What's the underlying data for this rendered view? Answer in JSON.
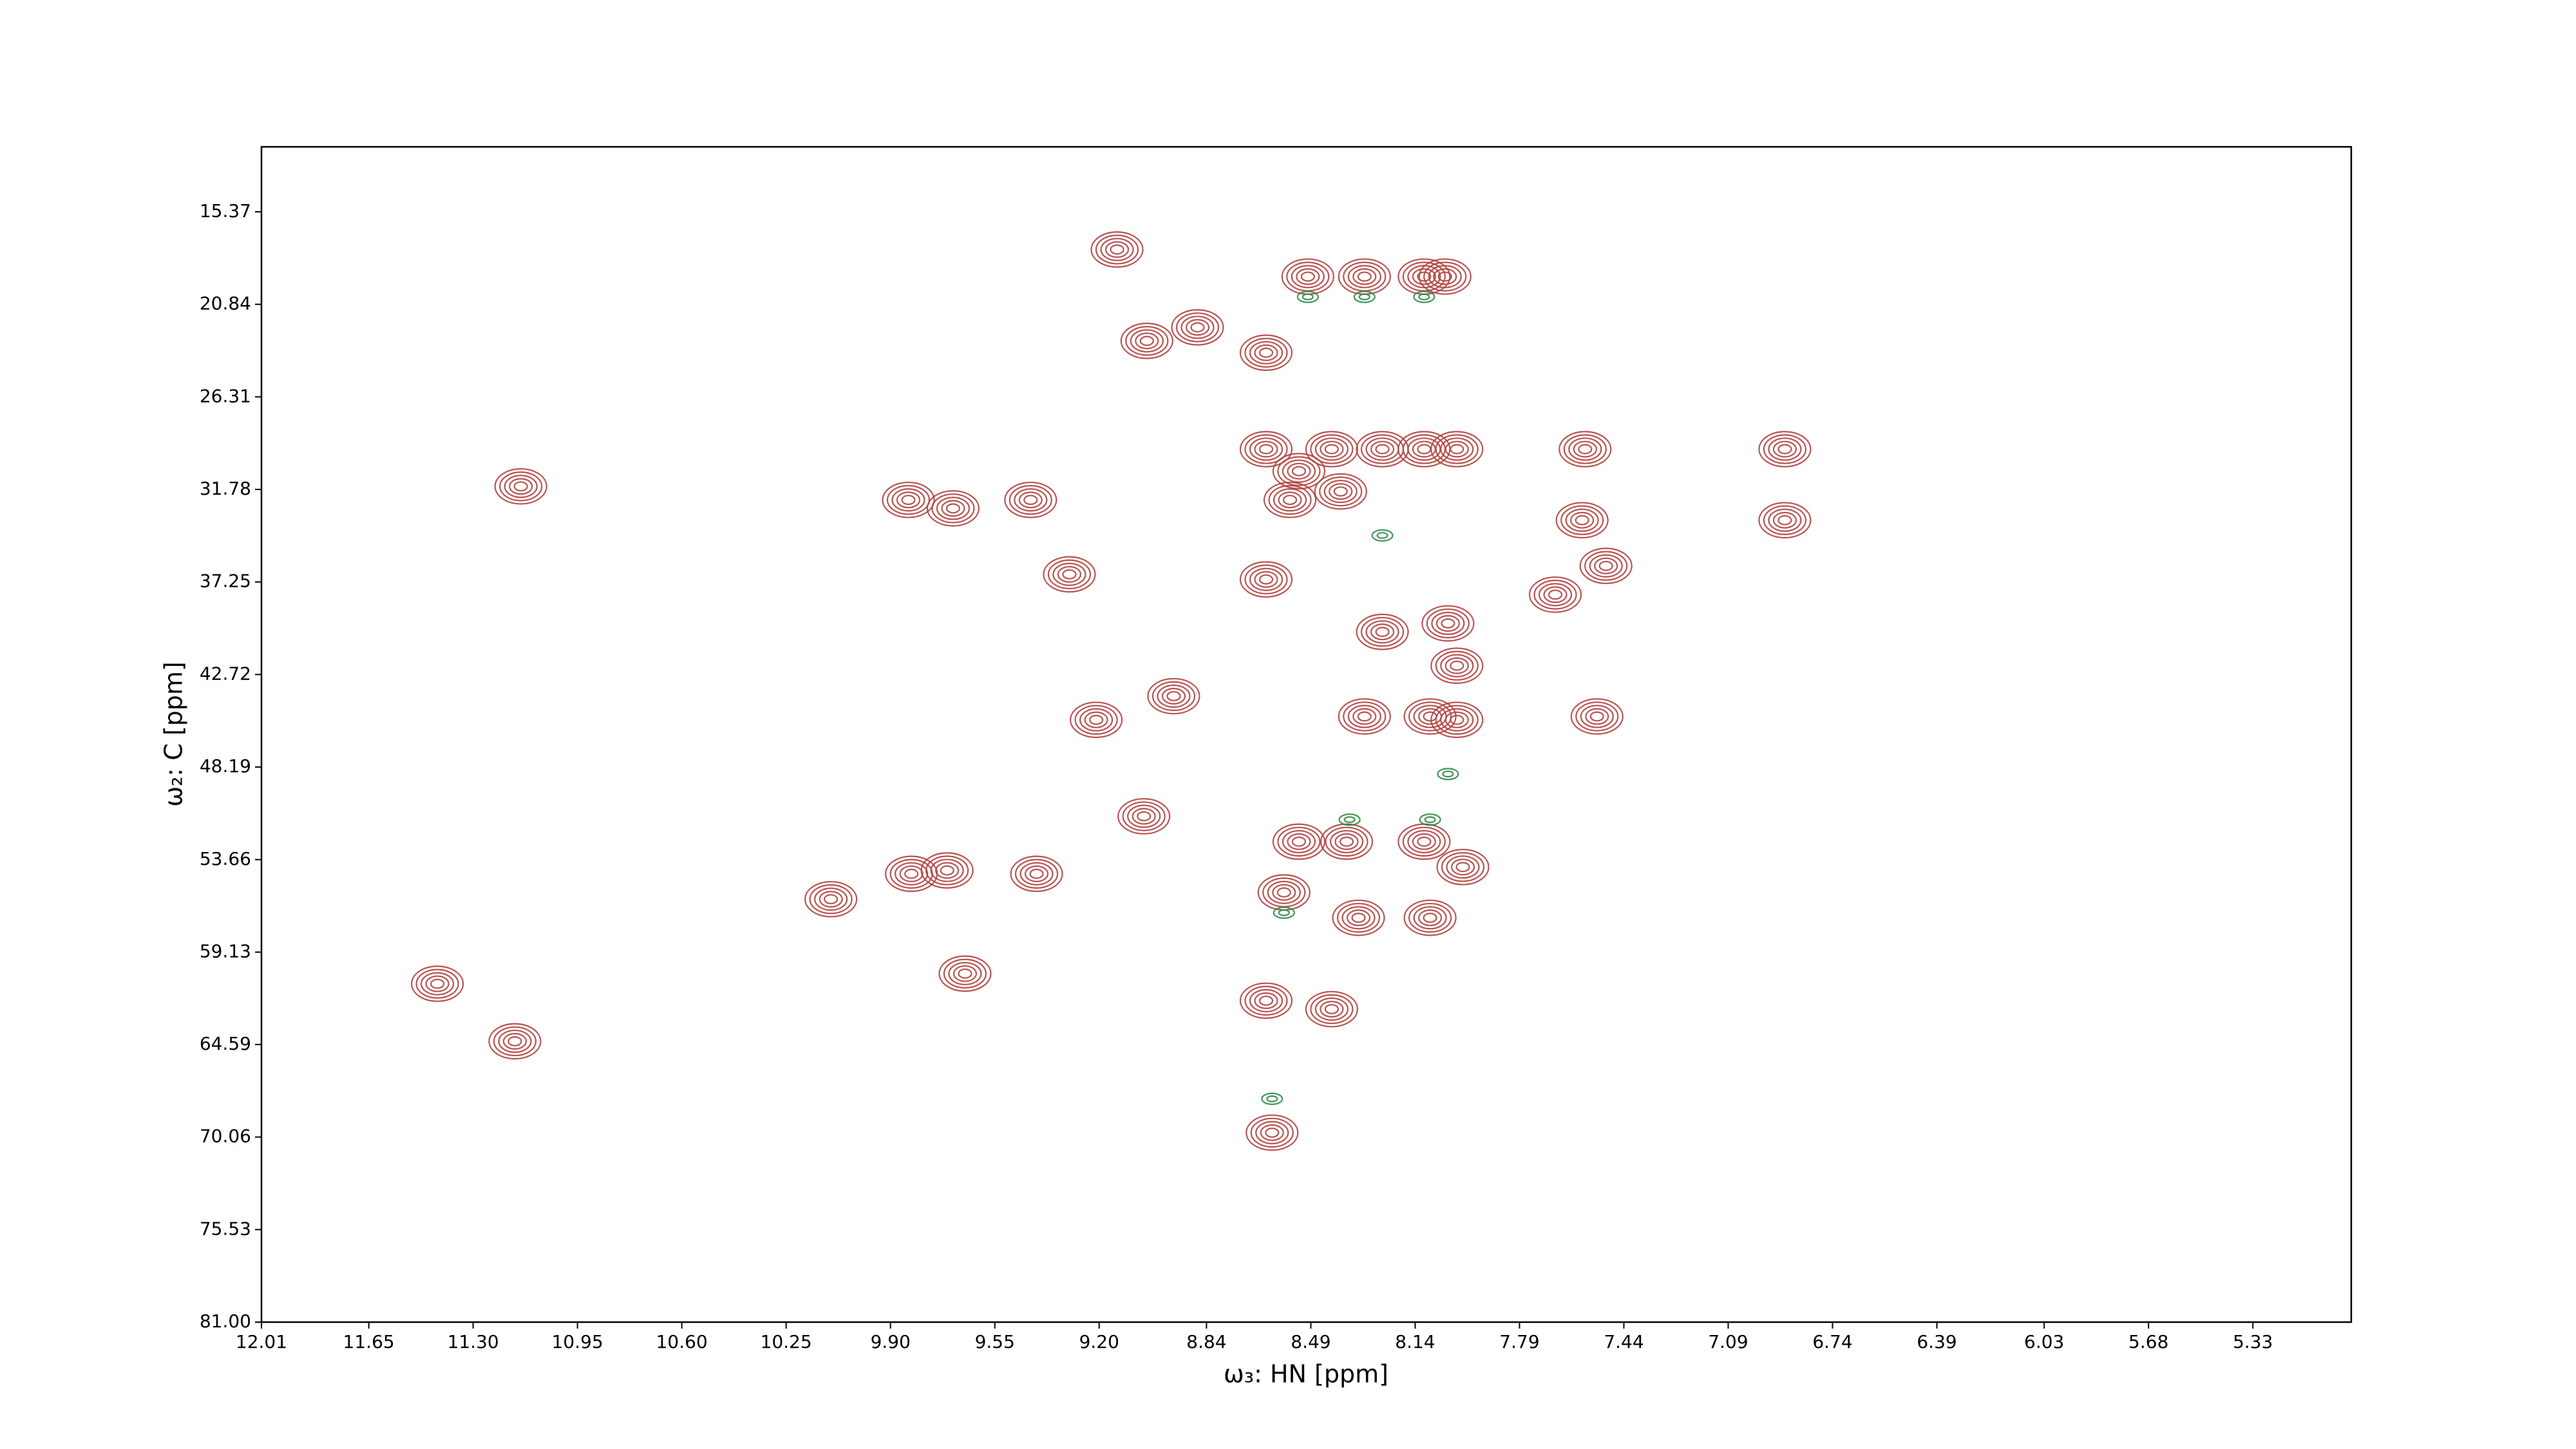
{
  "chart_data": {
    "type": "contour",
    "xlabel": "ω₃: HN [ppm]",
    "ylabel": "ω₂: C [ppm]",
    "xlim": [
      12.01,
      5.0
    ],
    "ylim": [
      81,
      11.53
    ],
    "xticks": [
      12.01,
      11.65,
      {
        "value": 11.3,
        "label": "11.30"
      },
      10.95,
      {
        "value": 10.6,
        "label": "10.60"
      },
      10.25,
      {
        "value": 9.9,
        "label": "9.90"
      },
      9.55,
      {
        "value": 9.2,
        "label": "9.20"
      },
      8.84,
      8.49,
      8.14,
      7.79,
      7.44,
      7.09,
      6.74,
      6.39,
      6.03,
      5.68,
      5.33
    ],
    "yticks": [
      15.37,
      20.84,
      26.31,
      31.78,
      37.25,
      42.72,
      48.19,
      53.66,
      59.13,
      64.59,
      70.06,
      75.53,
      {
        "value": 81,
        "label": "81.00"
      }
    ],
    "series": [
      {
        "color": "#b0413e",
        "x": [
          8.5,
          8.31,
          8.11,
          8.04,
          8.64,
          9.04,
          8.87,
          9.14,
          8.64,
          8.42,
          8.25,
          8.11,
          8.0,
          8.53,
          8.39,
          8.56,
          7.58,
          6.9,
          6.9,
          7.57,
          8.64,
          9.3,
          8.25,
          8.03,
          8.0,
          7.67,
          7.5,
          8.31,
          8.09,
          8.0,
          7.53,
          9.21,
          8.95,
          8.53,
          8.37,
          8.11,
          7.98,
          9.05,
          8.58,
          8.33,
          8.09,
          8.64,
          8.42,
          8.62,
          11.16,
          11.42,
          10.1,
          9.83,
          9.71,
          9.65,
          9.41,
          9.84,
          9.69,
          9.43,
          11.14
        ],
        "y": [
          19.2,
          19.2,
          19.2,
          19.2,
          23.7,
          23.0,
          22.2,
          17.6,
          29.4,
          29.4,
          29.4,
          29.4,
          29.4,
          30.7,
          31.9,
          32.4,
          33.6,
          33.6,
          29.4,
          29.4,
          37.1,
          36.8,
          40.2,
          39.7,
          42.2,
          38.0,
          36.3,
          45.2,
          45.2,
          45.4,
          45.2,
          45.4,
          44.0,
          52.6,
          52.6,
          52.6,
          54.1,
          51.1,
          55.6,
          57.1,
          57.1,
          62.0,
          62.5,
          69.8,
          64.4,
          61.0,
          56.0,
          54.5,
          54.3,
          60.4,
          54.5,
          32.4,
          32.9,
          32.4,
          31.6
        ]
      },
      {
        "color": "#2e8b46",
        "x": [
          8.5,
          8.31,
          8.11,
          8.36,
          8.09,
          8.58,
          8.03,
          8.25,
          8.62
        ],
        "y": [
          20.4,
          20.4,
          20.4,
          51.3,
          51.3,
          56.8,
          48.6,
          34.5,
          67.8
        ]
      }
    ]
  }
}
